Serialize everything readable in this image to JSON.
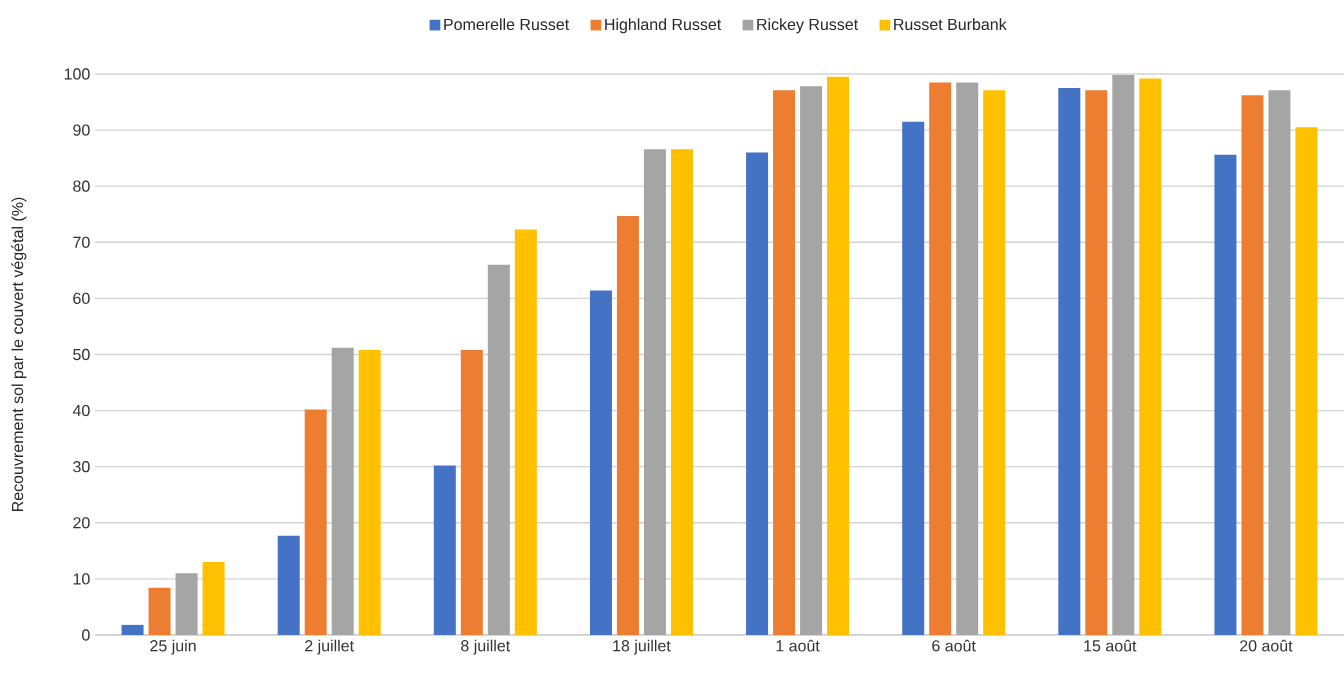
{
  "chart_data": {
    "type": "bar",
    "ylabel": "Recouvrement  sol par le couvert végétal  (%)",
    "categories": [
      "25 juin",
      "2 juillet",
      "8 juillet",
      "18 juillet",
      "1 août",
      "6 août",
      "15 août",
      "20 août"
    ],
    "series": [
      {
        "name": "Pomerelle Russet",
        "color": "#4472c4",
        "values": [
          1.8,
          17.7,
          30.2,
          61.4,
          86,
          91.5,
          97.5,
          85.6
        ]
      },
      {
        "name": "Highland Russet",
        "color": "#ed7d31",
        "values": [
          8.4,
          40.2,
          50.8,
          74.7,
          97.1,
          98.5,
          97.1,
          96.2
        ]
      },
      {
        "name": "Rickey Russet",
        "color": "#a5a5a5",
        "values": [
          11,
          51.2,
          66,
          86.6,
          97.8,
          98.5,
          99.8,
          97.1
        ]
      },
      {
        "name": "Russet Burbank",
        "color": "#ffc000",
        "values": [
          13,
          50.8,
          72.3,
          86.6,
          99.5,
          97.1,
          99.2,
          90.5
        ]
      }
    ],
    "ylim": [
      0,
      100
    ],
    "yticks": [
      0,
      10,
      20,
      30,
      40,
      50,
      60,
      70,
      80,
      90,
      100
    ],
    "grid": "y",
    "legend": "top"
  }
}
